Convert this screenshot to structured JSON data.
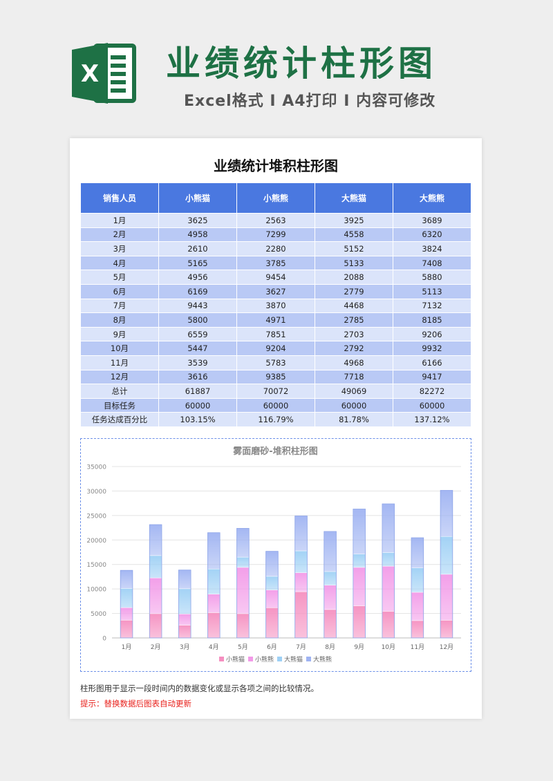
{
  "header": {
    "logo_letter": "X",
    "title": "业绩统计柱形图",
    "subtitle": "Excel格式 Ⅰ A4打印 Ⅰ 内容可修改",
    "brand_color": "#1e7145"
  },
  "document": {
    "title": "业绩统计堆积柱形图",
    "columns": [
      "销售人员",
      "小熊猫",
      "小熊熊",
      "大熊猫",
      "大熊熊"
    ],
    "rows": [
      [
        "1月",
        "3625",
        "2563",
        "3925",
        "3689"
      ],
      [
        "2月",
        "4958",
        "7299",
        "4558",
        "6320"
      ],
      [
        "3月",
        "2610",
        "2280",
        "5152",
        "3824"
      ],
      [
        "4月",
        "5165",
        "3785",
        "5133",
        "7408"
      ],
      [
        "5月",
        "4956",
        "9454",
        "2088",
        "5880"
      ],
      [
        "6月",
        "6169",
        "3627",
        "2779",
        "5113"
      ],
      [
        "7月",
        "9443",
        "3870",
        "4468",
        "7132"
      ],
      [
        "8月",
        "5800",
        "4971",
        "2785",
        "8185"
      ],
      [
        "9月",
        "6559",
        "7851",
        "2703",
        "9206"
      ],
      [
        "10月",
        "5447",
        "9204",
        "2792",
        "9932"
      ],
      [
        "11月",
        "3539",
        "5783",
        "4968",
        "6166"
      ],
      [
        "12月",
        "3616",
        "9385",
        "7718",
        "9417"
      ],
      [
        "总计",
        "61887",
        "70072",
        "49069",
        "82272"
      ],
      [
        "目标任务",
        "60000",
        "60000",
        "60000",
        "60000"
      ],
      [
        "任务达成百分比",
        "103.15%",
        "116.79%",
        "81.78%",
        "137.12%"
      ]
    ],
    "note": "柱形图用于显示一段时间内的数据变化或显示各项之间的比较情况。",
    "hint": "提示：替换数据后图表自动更新"
  },
  "chart_data": {
    "type": "bar",
    "stacked": true,
    "title": "雾面磨砂-堆积柱形图",
    "categories": [
      "1月",
      "2月",
      "3月",
      "4月",
      "5月",
      "6月",
      "7月",
      "8月",
      "9月",
      "10月",
      "11月",
      "12月"
    ],
    "series": [
      {
        "name": "小熊猫",
        "color": "#f58fc0",
        "values": [
          3625,
          4958,
          2610,
          5165,
          4956,
          6169,
          9443,
          5800,
          6559,
          5447,
          3539,
          3616
        ]
      },
      {
        "name": "小熊熊",
        "color": "#f29ae8",
        "values": [
          2563,
          7299,
          2280,
          3785,
          9454,
          3627,
          3870,
          4971,
          7851,
          9204,
          5783,
          9385
        ]
      },
      {
        "name": "大熊猫",
        "color": "#9ed0f5",
        "values": [
          3925,
          4558,
          5152,
          5133,
          2088,
          2779,
          4468,
          2785,
          2703,
          2792,
          4968,
          7718
        ]
      },
      {
        "name": "大熊熊",
        "color": "#9fb3f2",
        "values": [
          3689,
          6320,
          3824,
          7408,
          5880,
          5113,
          7132,
          8185,
          9206,
          9932,
          6166,
          9417
        ]
      }
    ],
    "ylim": [
      0,
      35000
    ],
    "yticks": [
      "0",
      "5000",
      "10000",
      "15000",
      "20000",
      "25000",
      "30000",
      "35000"
    ],
    "grid": true,
    "legend": "bottom"
  }
}
